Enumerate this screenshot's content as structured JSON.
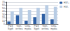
{
  "chart_data": {
    "type": "bar",
    "categories": [
      "P&S\nSyph",
      "Gon-\norrhea",
      "Chla-\nmydia",
      "P&S\nSyph",
      "Gon-\norrhea",
      "Chla-\nmydia"
    ],
    "series": [
      {
        "name": "HIV+",
        "color": "#2e5fa3",
        "values": [
          8,
          28,
          10,
          22,
          32,
          15
        ]
      },
      {
        "name": "HIV-",
        "color": "#b8cce4",
        "values": [
          40,
          52,
          45,
          52,
          60,
          55
        ]
      }
    ],
    "ylim": [
      0,
      70
    ],
    "yticks": [
      0,
      10,
      20,
      30,
      40,
      50,
      60,
      70
    ],
    "grid": true,
    "legend": "upper right"
  }
}
